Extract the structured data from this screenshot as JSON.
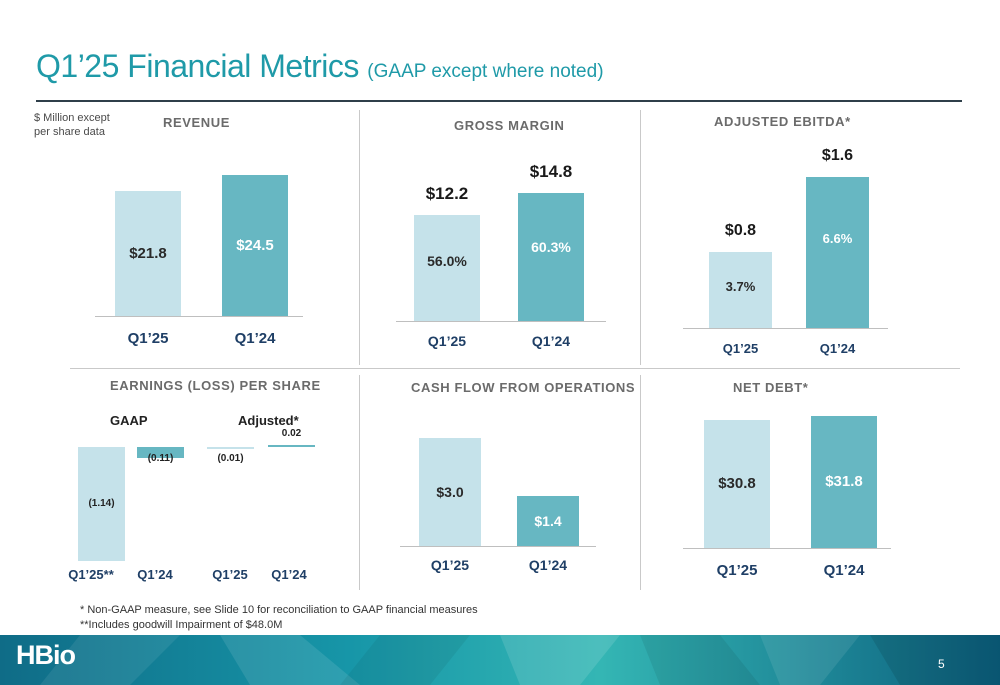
{
  "header": {
    "title": "Q1’25 Financial Metrics",
    "subtitle": "(GAAP except where noted)",
    "units_line1": "$ Million except",
    "units_line2": "per share data"
  },
  "chart_data": [
    {
      "id": "revenue",
      "type": "bar",
      "title": "REVENUE",
      "categories": [
        "Q1’25",
        "Q1’24"
      ],
      "values": [
        21.8,
        24.5
      ],
      "value_labels": [
        "$21.8",
        "$24.5"
      ],
      "ylim": [
        0,
        24.5
      ]
    },
    {
      "id": "gross_margin",
      "type": "bar",
      "title": "GROSS MARGIN",
      "categories": [
        "Q1’25",
        "Q1’24"
      ],
      "values": [
        12.2,
        14.8
      ],
      "value_labels": [
        "$12.2",
        "$14.8"
      ],
      "inner_labels": [
        "56.0%",
        "60.3%"
      ],
      "ylim": [
        0,
        14.8
      ]
    },
    {
      "id": "adjusted_ebitda",
      "type": "bar",
      "title": "ADJUSTED EBITDA*",
      "categories": [
        "Q1’25",
        "Q1’24"
      ],
      "values": [
        0.8,
        1.6
      ],
      "value_labels": [
        "$0.8",
        "$1.6"
      ],
      "inner_labels": [
        "3.7%",
        "6.6%"
      ],
      "ylim": [
        0,
        1.6
      ]
    },
    {
      "id": "eps",
      "type": "bar",
      "title": "EARNINGS (LOSS) PER SHARE",
      "groups": [
        "GAAP",
        "Adjusted*"
      ],
      "categories": [
        "Q1’25**",
        "Q1’24",
        "Q1’25",
        "Q1’24"
      ],
      "values": [
        -1.14,
        -0.11,
        -0.01,
        0.02
      ],
      "value_labels": [
        "(1.14)",
        "(0.11)",
        "(0.01)",
        "0.02"
      ],
      "ylim": [
        -1.14,
        0.02
      ]
    },
    {
      "id": "cash_flow",
      "type": "bar",
      "title": "CASH FLOW FROM OPERATIONS",
      "categories": [
        "Q1’25",
        "Q1’24"
      ],
      "values": [
        3.0,
        1.4
      ],
      "value_labels": [
        "$3.0",
        "$1.4"
      ],
      "ylim": [
        0,
        3.0
      ]
    },
    {
      "id": "net_debt",
      "type": "bar",
      "title": "NET DEBT*",
      "categories": [
        "Q1’25",
        "Q1’24"
      ],
      "values": [
        30.8,
        31.8
      ],
      "value_labels": [
        "$30.8",
        "$31.8"
      ],
      "ylim": [
        0,
        31.8
      ]
    }
  ],
  "footnotes": {
    "note1": "* Non-GAAP measure, see Slide 10 for reconciliation to GAAP financial measures",
    "note2": "**Includes goodwill Impairment of $48.0M"
  },
  "footer": {
    "logo_text": "HBio",
    "page_number": "5"
  },
  "colors": {
    "accent": "#1f9aa8",
    "bar_q1_25": "#c5e2ea",
    "bar_q1_24": "#67b7c2",
    "category_text": "#1f3f66"
  }
}
